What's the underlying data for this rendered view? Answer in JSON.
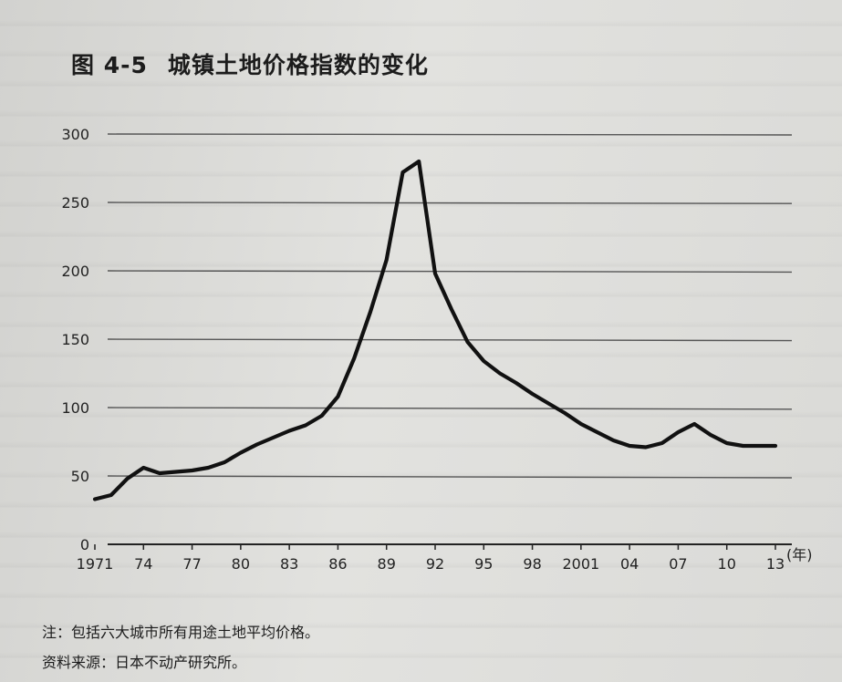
{
  "figure": {
    "number": "图 4-5",
    "title": "城镇土地价格指数的变化"
  },
  "chart_data": {
    "type": "line",
    "title": "城镇土地价格指数的变化",
    "xlabel": "",
    "ylabel": "",
    "x_unit": "(年)",
    "ylim": [
      0,
      300
    ],
    "y_ticks": [
      0,
      50,
      100,
      150,
      200,
      250,
      300
    ],
    "x_tick_labels": [
      {
        "year": 1971,
        "label": "1971"
      },
      {
        "year": 1974,
        "label": "74"
      },
      {
        "year": 1977,
        "label": "77"
      },
      {
        "year": 1980,
        "label": "80"
      },
      {
        "year": 1983,
        "label": "83"
      },
      {
        "year": 1986,
        "label": "86"
      },
      {
        "year": 1989,
        "label": "89"
      },
      {
        "year": 1992,
        "label": "92"
      },
      {
        "year": 1995,
        "label": "95"
      },
      {
        "year": 1998,
        "label": "98"
      },
      {
        "year": 2001,
        "label": "2001"
      },
      {
        "year": 2004,
        "label": "04"
      },
      {
        "year": 2007,
        "label": "07"
      },
      {
        "year": 2010,
        "label": "10"
      },
      {
        "year": 2013,
        "label": "13"
      }
    ],
    "grid": true,
    "series": [
      {
        "x": [
          1971,
          1972,
          1973,
          1974,
          1975,
          1976,
          1977,
          1978,
          1979,
          1980,
          1981,
          1982,
          1983,
          1984,
          1985,
          1986,
          1987,
          1988,
          1989,
          1990,
          1991,
          1992,
          1993,
          1994,
          1995,
          1996,
          1997,
          1998,
          1999,
          2000,
          2001,
          2002,
          2003,
          2004,
          2005,
          2006,
          2007,
          2008,
          2009,
          2010,
          2011,
          2012,
          2013
        ],
        "values": [
          33,
          36,
          48,
          56,
          52,
          53,
          54,
          56,
          60,
          67,
          73,
          78,
          83,
          87,
          94,
          108,
          136,
          170,
          208,
          272,
          280,
          198,
          172,
          148,
          134,
          125,
          118,
          110,
          103,
          96,
          88,
          82,
          76,
          72,
          71,
          74,
          82,
          88,
          80,
          74,
          72,
          72,
          72
        ]
      }
    ]
  },
  "notes": {
    "note": "注：包括六大城市所有用途土地平均价格。",
    "source": "资料来源：日本不动产研究所。"
  }
}
